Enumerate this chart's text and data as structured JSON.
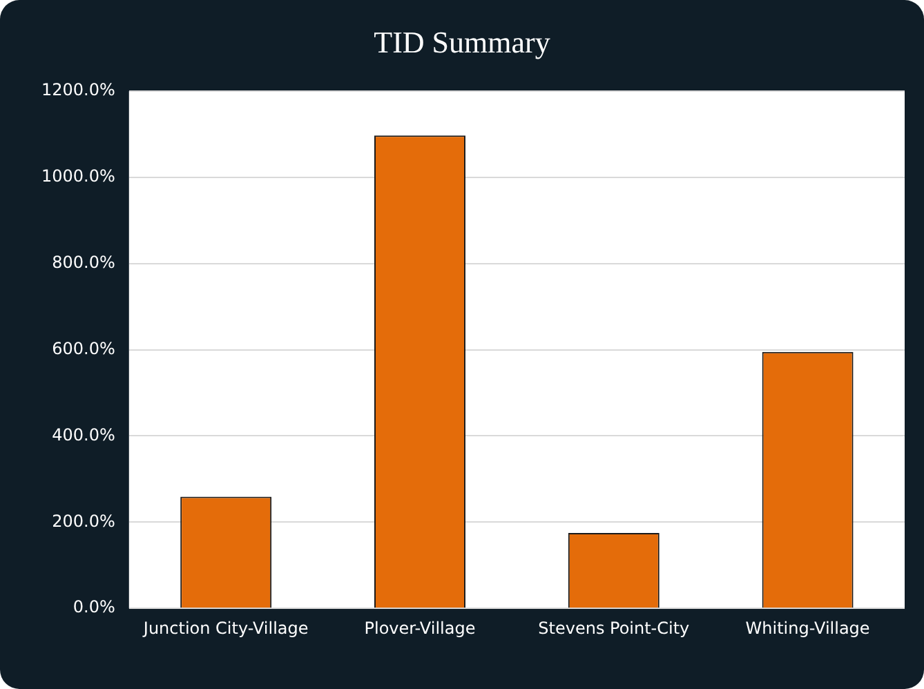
{
  "chart_data": {
    "type": "bar",
    "title": "TID Summary",
    "categories": [
      "Junction City-Village",
      "Plover-Village",
      "Stevens Point-City",
      "Whiting-Village"
    ],
    "values": [
      259,
      1097,
      175,
      595
    ],
    "color": "#e46c0a",
    "ylim": [
      0,
      1200
    ],
    "yticks": [
      {
        "value": 0,
        "label": "0.0%"
      },
      {
        "value": 200,
        "label": "200.0%"
      },
      {
        "value": 400,
        "label": "400.0%"
      },
      {
        "value": 600,
        "label": "600.0%"
      },
      {
        "value": 800,
        "label": "800.0%"
      },
      {
        "value": 1000,
        "label": "1000.0%"
      },
      {
        "value": 1200,
        "label": "1200.0%"
      }
    ],
    "grid": "y",
    "legend": false
  }
}
